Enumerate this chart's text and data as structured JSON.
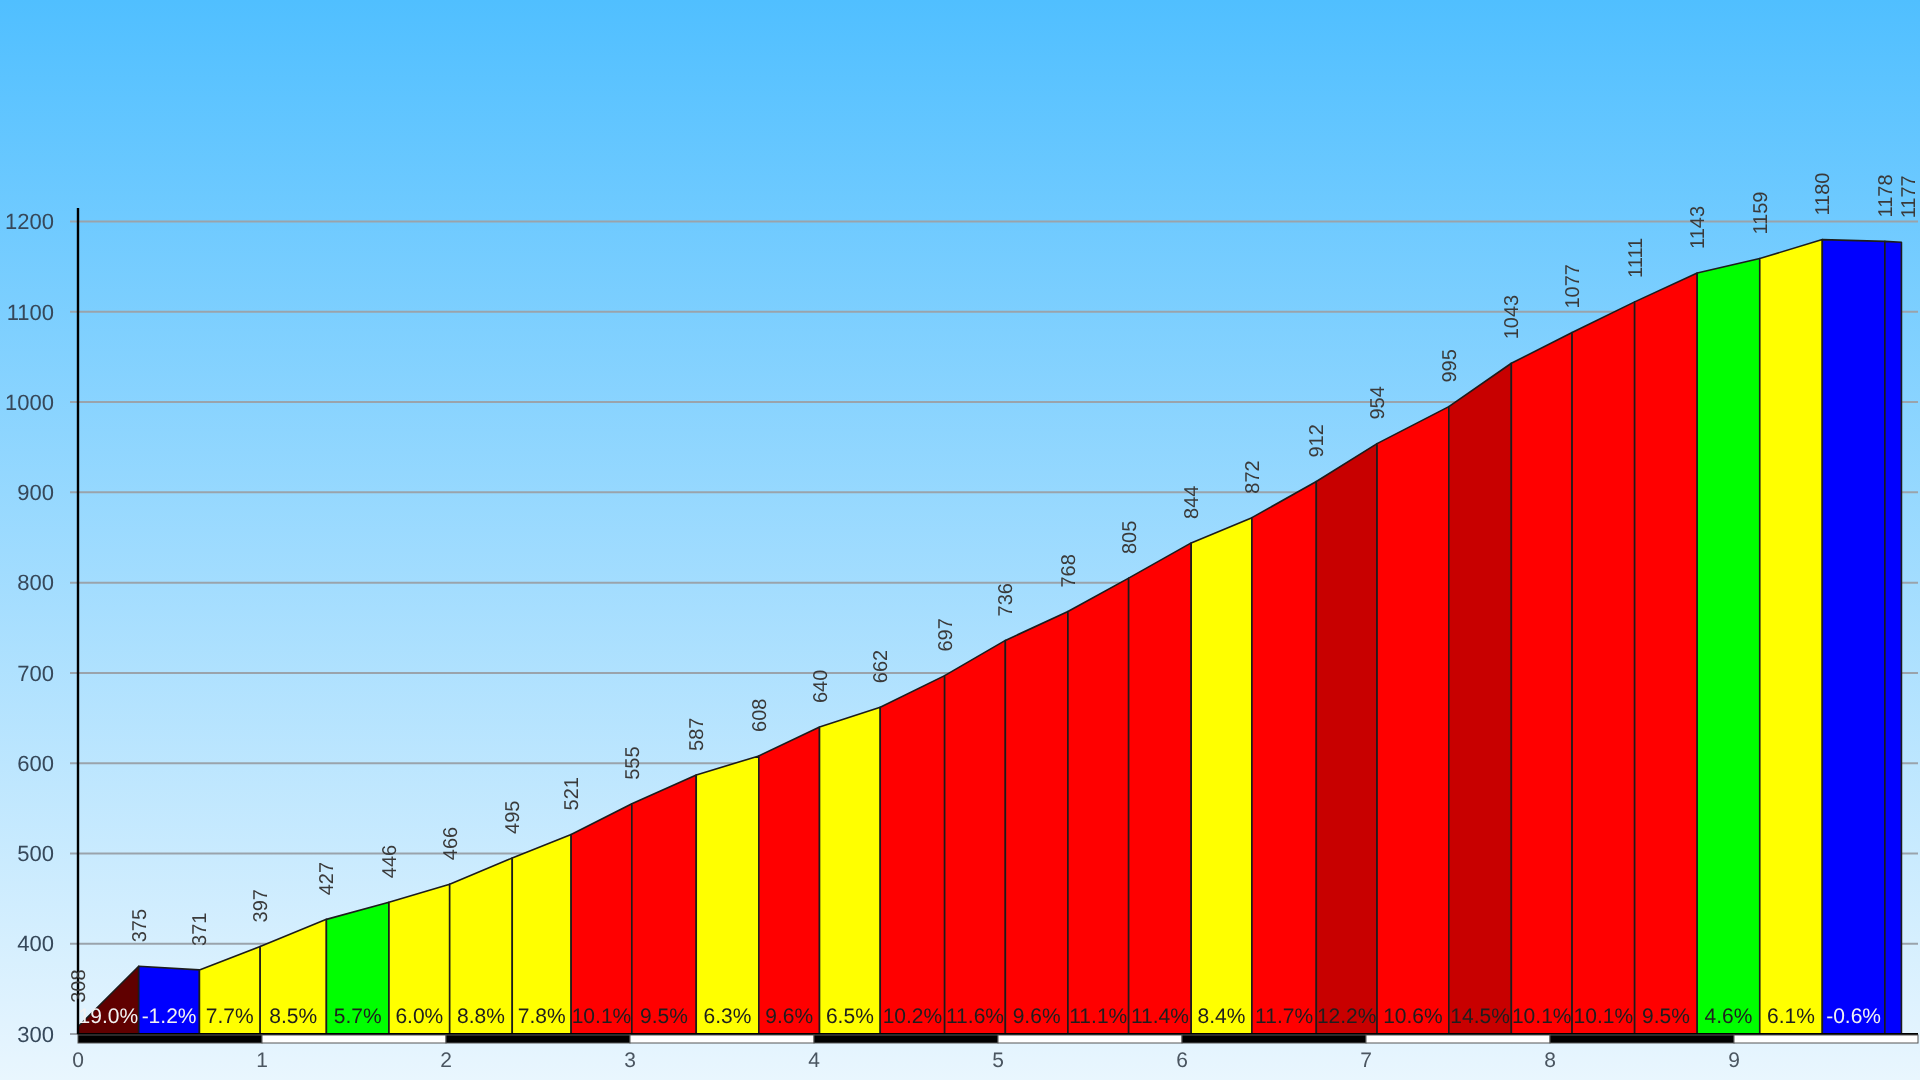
{
  "chart_data": {
    "type": "area",
    "xlim": [
      0,
      10
    ],
    "ylim": [
      300,
      1215
    ],
    "xticks": [
      0,
      1,
      2,
      3,
      4,
      5,
      6,
      7,
      8,
      9
    ],
    "yticks": [
      300,
      400,
      500,
      600,
      700,
      800,
      900,
      1000,
      1100,
      1200
    ],
    "grid": "y",
    "series": [
      {
        "x": [
          0,
          0.33
        ],
        "values": [
          308,
          375
        ],
        "color": "#600000",
        "value_labels": [
          "308",
          "375"
        ]
      },
      {
        "x": [
          0.33,
          0.66
        ],
        "values": [
          375,
          371
        ],
        "color": "#0000ff",
        "value_labels": [
          null,
          "371"
        ]
      },
      {
        "x": [
          0.66,
          0.99
        ],
        "values": [
          371,
          397
        ],
        "color": "#ffff00",
        "value_labels": [
          null,
          "397"
        ]
      },
      {
        "x": [
          0.99,
          1.35
        ],
        "values": [
          397,
          427
        ],
        "color": "#ffff00",
        "value_labels": [
          null,
          "427"
        ]
      },
      {
        "x": [
          1.35,
          1.69
        ],
        "values": [
          427,
          446
        ],
        "color": "#00ff00",
        "value_labels": [
          null,
          "446"
        ]
      },
      {
        "x": [
          1.69,
          2.02
        ],
        "values": [
          446,
          466
        ],
        "color": "#ffff00",
        "value_labels": [
          null,
          "466"
        ]
      },
      {
        "x": [
          2.02,
          2.36
        ],
        "values": [
          466,
          495
        ],
        "color": "#ffff00",
        "value_labels": [
          null,
          "495"
        ]
      },
      {
        "x": [
          2.36,
          2.68
        ],
        "values": [
          495,
          521
        ],
        "color": "#ffff00",
        "value_labels": [
          null,
          "521"
        ]
      },
      {
        "x": [
          2.68,
          3.01
        ],
        "values": [
          521,
          555
        ],
        "color": "#ff0000",
        "value_labels": [
          null,
          "555"
        ]
      },
      {
        "x": [
          3.01,
          3.36
        ],
        "values": [
          555,
          587
        ],
        "color": "#ff0000",
        "value_labels": [
          null,
          "587"
        ]
      },
      {
        "x": [
          3.36,
          3.7
        ],
        "values": [
          587,
          608
        ],
        "color": "#ffff00",
        "value_labels": [
          null,
          "608"
        ]
      },
      {
        "x": [
          3.7,
          4.03
        ],
        "values": [
          608,
          640
        ],
        "color": "#ff0000",
        "value_labels": [
          null,
          "640"
        ]
      },
      {
        "x": [
          4.03,
          4.36
        ],
        "values": [
          640,
          662
        ],
        "color": "#ffff00",
        "value_labels": [
          null,
          "662"
        ]
      },
      {
        "x": [
          4.36,
          4.71
        ],
        "values": [
          662,
          697
        ],
        "color": "#ff0000",
        "value_labels": [
          null,
          "697"
        ]
      },
      {
        "x": [
          4.71,
          5.04
        ],
        "values": [
          697,
          736
        ],
        "color": "#ff0000",
        "value_labels": [
          null,
          "736"
        ]
      },
      {
        "x": [
          5.04,
          5.38
        ],
        "values": [
          736,
          768
        ],
        "color": "#ff0000",
        "value_labels": [
          null,
          "768"
        ]
      },
      {
        "x": [
          5.38,
          5.71
        ],
        "values": [
          768,
          805
        ],
        "color": "#ff0000",
        "value_labels": [
          null,
          "805"
        ]
      },
      {
        "x": [
          5.71,
          6.05
        ],
        "values": [
          805,
          844
        ],
        "color": "#ff0000",
        "value_labels": [
          null,
          "844"
        ]
      },
      {
        "x": [
          6.05,
          6.38
        ],
        "values": [
          844,
          872
        ],
        "color": "#ffff00",
        "value_labels": [
          null,
          "872"
        ]
      },
      {
        "x": [
          6.38,
          6.73
        ],
        "values": [
          872,
          912
        ],
        "color": "#ff0000",
        "value_labels": [
          null,
          "912"
        ]
      },
      {
        "x": [
          6.73,
          7.06
        ],
        "values": [
          912,
          954
        ],
        "color": "#c80000",
        "value_labels": [
          null,
          "954"
        ]
      },
      {
        "x": [
          7.06,
          7.45
        ],
        "values": [
          954,
          995
        ],
        "color": "#ff0000",
        "value_labels": [
          null,
          "995"
        ]
      },
      {
        "x": [
          7.45,
          7.79
        ],
        "values": [
          995,
          1043
        ],
        "color": "#c80000",
        "value_labels": [
          null,
          "1043"
        ]
      },
      {
        "x": [
          7.79,
          8.12
        ],
        "values": [
          1043,
          1077
        ],
        "color": "#ff0000",
        "value_labels": [
          null,
          "1077"
        ]
      },
      {
        "x": [
          8.12,
          8.46
        ],
        "values": [
          1077,
          1111
        ],
        "color": "#ff0000",
        "value_labels": [
          null,
          "1111"
        ]
      },
      {
        "x": [
          8.46,
          8.8
        ],
        "values": [
          1111,
          1143
        ],
        "color": "#ff0000",
        "value_labels": [
          null,
          "1143"
        ]
      },
      {
        "x": [
          8.8,
          9.14
        ],
        "values": [
          1143,
          1159
        ],
        "color": "#00ff00",
        "value_labels": [
          null,
          "1159"
        ]
      },
      {
        "x": [
          9.14,
          9.48
        ],
        "values": [
          1159,
          1180
        ],
        "color": "#ffff00",
        "value_labels": [
          null,
          "1180"
        ]
      },
      {
        "x": [
          9.48,
          9.82
        ],
        "values": [
          1180,
          1178
        ],
        "color": "#0000ff",
        "value_labels": [
          null,
          "1178"
        ]
      },
      {
        "x": [
          9.82,
          9.91
        ],
        "values": [
          1178,
          1177
        ],
        "color": "#0000ff",
        "value_labels": [
          null,
          "1177"
        ]
      }
    ],
    "annotations": [
      "19.0%",
      "-1.2%",
      "7.7%",
      "8.5%",
      "5.7%",
      "6.0%",
      "8.8%",
      "7.8%",
      "10.1%",
      "9.5%",
      "6.3%",
      "9.6%",
      "6.5%",
      "10.2%",
      "11.6%",
      "9.6%",
      "11.1%",
      "11.4%",
      "8.4%",
      "11.7%",
      "12.2%",
      "10.6%",
      "14.5%",
      "10.1%",
      "10.1%",
      "9.5%",
      "4.6%",
      "6.1%",
      "-0.6%"
    ]
  }
}
